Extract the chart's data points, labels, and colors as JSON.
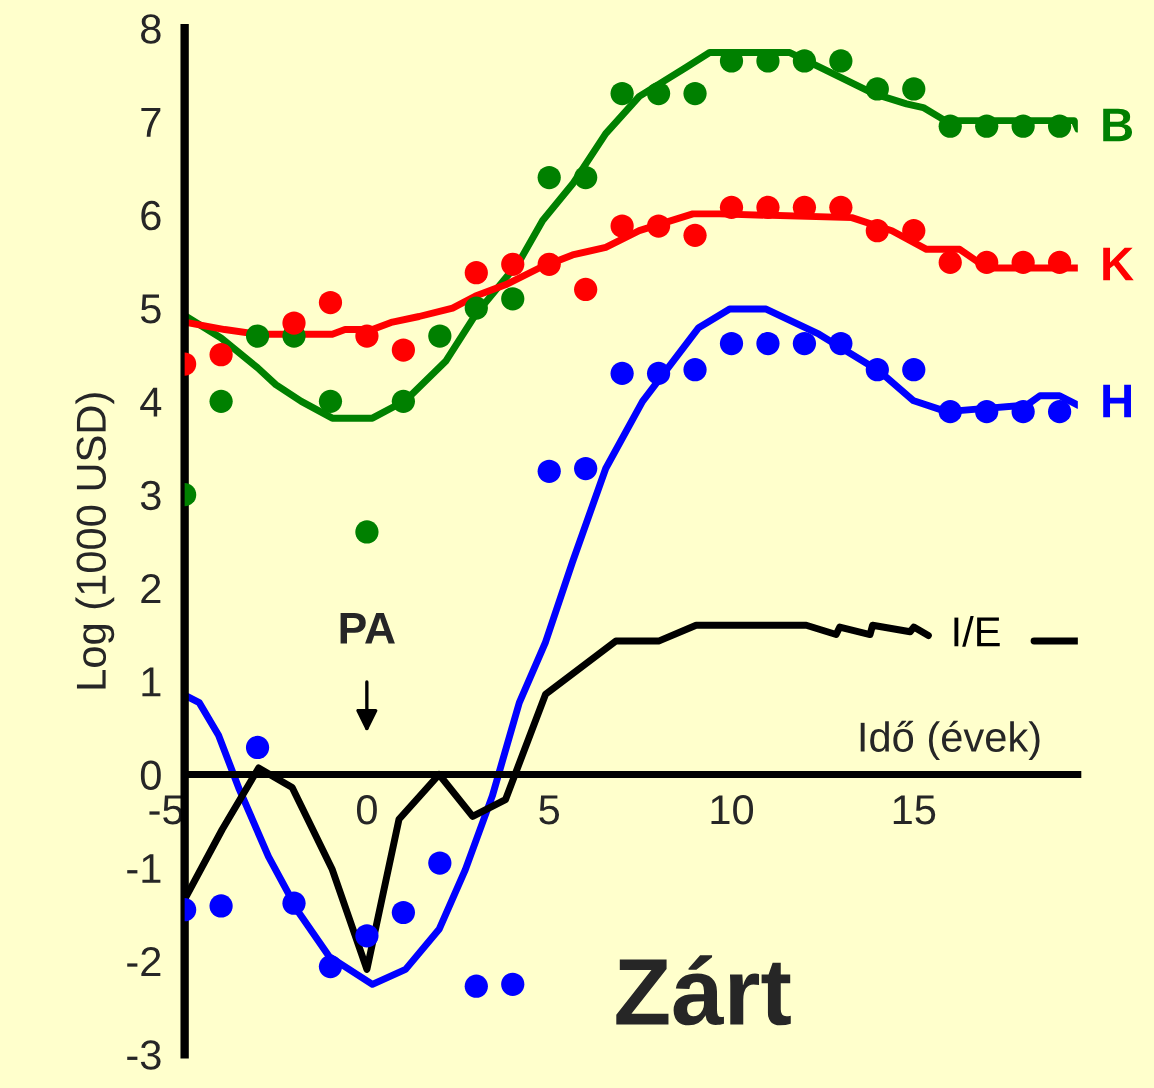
{
  "chart_data": {
    "type": "line",
    "title": "Zárt",
    "xlabel": "Idő (évek)",
    "ylabel": "Log (1000 USD)",
    "xlim": [
      -5,
      19.5
    ],
    "xticks": [
      -5,
      0,
      5,
      10,
      15
    ],
    "ylim": [
      -3,
      8
    ],
    "yticks": [
      -3,
      -2,
      -1,
      0,
      1,
      2,
      3,
      4,
      5,
      6,
      7,
      8
    ],
    "grid": false,
    "legend": false,
    "annotations": [
      "PA"
    ],
    "series": [
      {
        "type": "scatter",
        "marker": "circle",
        "color": "#008000",
        "x": [
          -5,
          -4,
          -3,
          -2,
          -1,
          0,
          1,
          2,
          3,
          4,
          5,
          6,
          7,
          8,
          9,
          10,
          11,
          12,
          13,
          14,
          15,
          16,
          17,
          18,
          19
        ],
        "values": [
          3.0,
          4.0,
          4.7,
          4.7,
          4.0,
          2.6,
          4.0,
          4.7,
          5.0,
          5.1,
          6.4,
          6.4,
          7.3,
          7.3,
          7.3,
          7.65,
          7.65,
          7.65,
          7.65,
          7.35,
          7.35,
          6.95,
          6.95,
          6.95,
          6.95
        ]
      },
      {
        "type": "scatter",
        "marker": "circle",
        "color": "#ff0000",
        "x": [
          -5,
          -4,
          -2,
          -1,
          0,
          1,
          3,
          4,
          5,
          6,
          7,
          8,
          9,
          10,
          11,
          12,
          13,
          14,
          15,
          16,
          17,
          18,
          19
        ],
        "values": [
          4.4,
          4.5,
          4.84,
          5.06,
          4.7,
          4.55,
          5.38,
          5.47,
          5.47,
          5.2,
          5.88,
          5.88,
          5.78,
          6.08,
          6.08,
          6.08,
          6.08,
          5.83,
          5.83,
          5.49,
          5.49,
          5.49,
          5.49
        ]
      },
      {
        "type": "scatter",
        "marker": "circle",
        "color": "#0000ff",
        "x": [
          -5,
          -4,
          -3,
          -2,
          -1,
          0,
          1,
          2,
          3,
          4,
          5,
          6,
          7,
          8,
          9,
          10,
          11,
          12,
          13,
          14,
          15,
          16,
          17,
          18,
          19
        ],
        "values": [
          -1.45,
          -1.41,
          0.29,
          -1.38,
          -2.06,
          -1.73,
          -1.48,
          -0.95,
          -2.27,
          -2.25,
          3.25,
          3.28,
          4.3,
          4.3,
          4.34,
          4.62,
          4.62,
          4.62,
          4.62,
          4.34,
          4.34,
          3.89,
          3.89,
          3.89,
          3.89
        ]
      },
      {
        "name": "B",
        "color": "#008000",
        "x": [
          -5,
          -4,
          -3,
          -2.5,
          -1.8,
          -0.95,
          0.15,
          1.06,
          2.16,
          2.98,
          4.18,
          4.82,
          5.64,
          6.55,
          7.47,
          8.75,
          9.4,
          11.6,
          12.6,
          13.9,
          14.8,
          15.26,
          15.86,
          19.4,
          19.5
        ],
        "values": [
          4.92,
          4.68,
          4.36,
          4.18,
          4.0,
          3.82,
          3.82,
          4.01,
          4.43,
          4.93,
          5.5,
          5.94,
          6.33,
          6.87,
          7.27,
          7.58,
          7.74,
          7.74,
          7.55,
          7.3,
          7.19,
          7.15,
          7.01,
          7.01,
          6.92
        ]
      },
      {
        "name": "K",
        "color": "#ff0000",
        "x": [
          -5,
          -3.9,
          -3,
          -0.95,
          -0.6,
          0.15,
          0.7,
          1.43,
          2.35,
          2.98,
          3.8,
          4.73,
          5.64,
          6.55,
          7.47,
          8.94,
          9.67,
          13.3,
          14.4,
          15.35,
          16.26,
          17.0,
          19.5
        ],
        "values": [
          4.85,
          4.77,
          4.72,
          4.72,
          4.77,
          4.77,
          4.85,
          4.91,
          5.0,
          5.13,
          5.25,
          5.43,
          5.57,
          5.65,
          5.83,
          6.01,
          6.01,
          5.97,
          5.83,
          5.63,
          5.63,
          5.43,
          5.43
        ]
      },
      {
        "name": "H",
        "color": "#0000ff",
        "x": [
          -5,
          -4.6,
          -4.07,
          -3.5,
          -2.7,
          -1.87,
          -1.04,
          0.15,
          1.06,
          1.98,
          2.7,
          3.44,
          4.18,
          4.9,
          5.64,
          6.55,
          7.56,
          9.1,
          9.95,
          10.95,
          12.4,
          14.07,
          14.98,
          15.9,
          18.1,
          18.46,
          19.0,
          19.5
        ],
        "values": [
          0.85,
          0.77,
          0.42,
          -0.16,
          -0.88,
          -1.48,
          -1.95,
          -2.25,
          -2.09,
          -1.66,
          -1.02,
          -0.23,
          0.77,
          1.42,
          2.28,
          3.28,
          4.0,
          4.79,
          4.99,
          4.99,
          4.72,
          4.32,
          4.01,
          3.89,
          3.96,
          4.06,
          4.06,
          3.96
        ]
      },
      {
        "name": "I/E",
        "color": "#000000",
        "x": [
          -5,
          -3.97,
          -2.97,
          -2.05,
          -0.95,
          0,
          0.88,
          1.98,
          2.9,
          3.8,
          4.9,
          6.83,
          8.0,
          9.03,
          12.05,
          12.87,
          12.97,
          13.8,
          13.87,
          14.9,
          15.0,
          15.4,
          16.8,
          18.3,
          19.5
        ],
        "values": [
          -1.34,
          -0.59,
          0.07,
          -0.14,
          -1.02,
          -2.09,
          -0.48,
          0.0,
          -0.45,
          -0.27,
          0.86,
          1.43,
          1.43,
          1.6,
          1.6,
          1.5,
          1.58,
          1.5,
          1.6,
          1.53,
          1.58,
          1.49,
          null,
          1.43,
          1.43
        ]
      }
    ]
  }
}
